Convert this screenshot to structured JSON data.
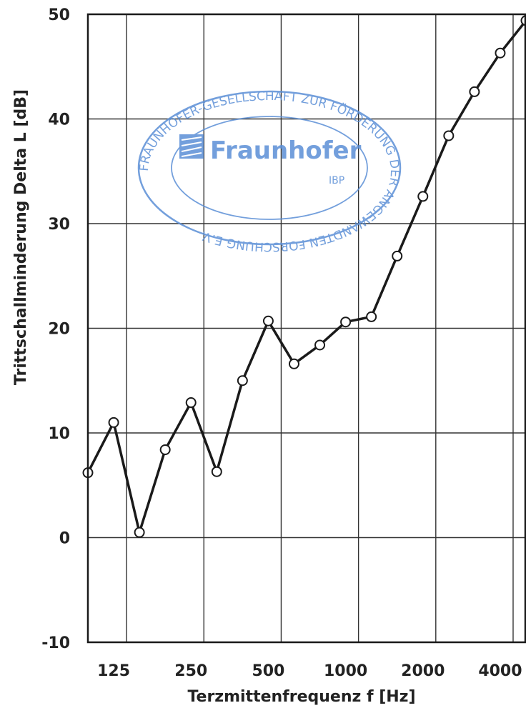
{
  "chart_data": {
    "type": "line",
    "xlabel": "Terzmittenfrequenz f [Hz]",
    "ylabel": "Trittschallminderung Delta L [dB]",
    "ylim": [
      -10,
      50
    ],
    "yticks": [
      -10,
      0,
      10,
      20,
      30,
      40,
      50
    ],
    "x_tick_labels": [
      "125",
      "250",
      "500",
      "1000",
      "2000",
      "4000"
    ],
    "grid": true,
    "points": [
      {
        "f": "100",
        "y": 6.2
      },
      {
        "f": "125",
        "y": 11.0
      },
      {
        "f": "160",
        "y": 0.5
      },
      {
        "f": "200",
        "y": 8.4
      },
      {
        "f": "250",
        "y": 12.9
      },
      {
        "f": "315",
        "y": 6.3
      },
      {
        "f": "400",
        "y": 15.0
      },
      {
        "f": "500",
        "y": 20.7
      },
      {
        "f": "630",
        "y": 16.6
      },
      {
        "f": "800",
        "y": 18.4
      },
      {
        "f": "1000",
        "y": 20.6
      },
      {
        "f": "1250",
        "y": 21.1
      },
      {
        "f": "1600",
        "y": 26.9
      },
      {
        "f": "2000",
        "y": 32.6
      },
      {
        "f": "2500",
        "y": 38.4
      },
      {
        "f": "3150",
        "y": 42.6
      },
      {
        "f": "4000",
        "y": 46.3
      },
      {
        "f": "5000",
        "y": 49.4
      }
    ],
    "line_color": "#1a1a1a",
    "marker_fill": "#ffffff"
  },
  "stamp": {
    "name": "Fraunhofer",
    "sub": "IBP",
    "ring_text": "FRAUNHOFER-GESELLSCHAFT ZUR FÖRDERUNG DER ANGEWANDTEN FORSCHUNG E.V.",
    "color": "#5b8fd6"
  }
}
